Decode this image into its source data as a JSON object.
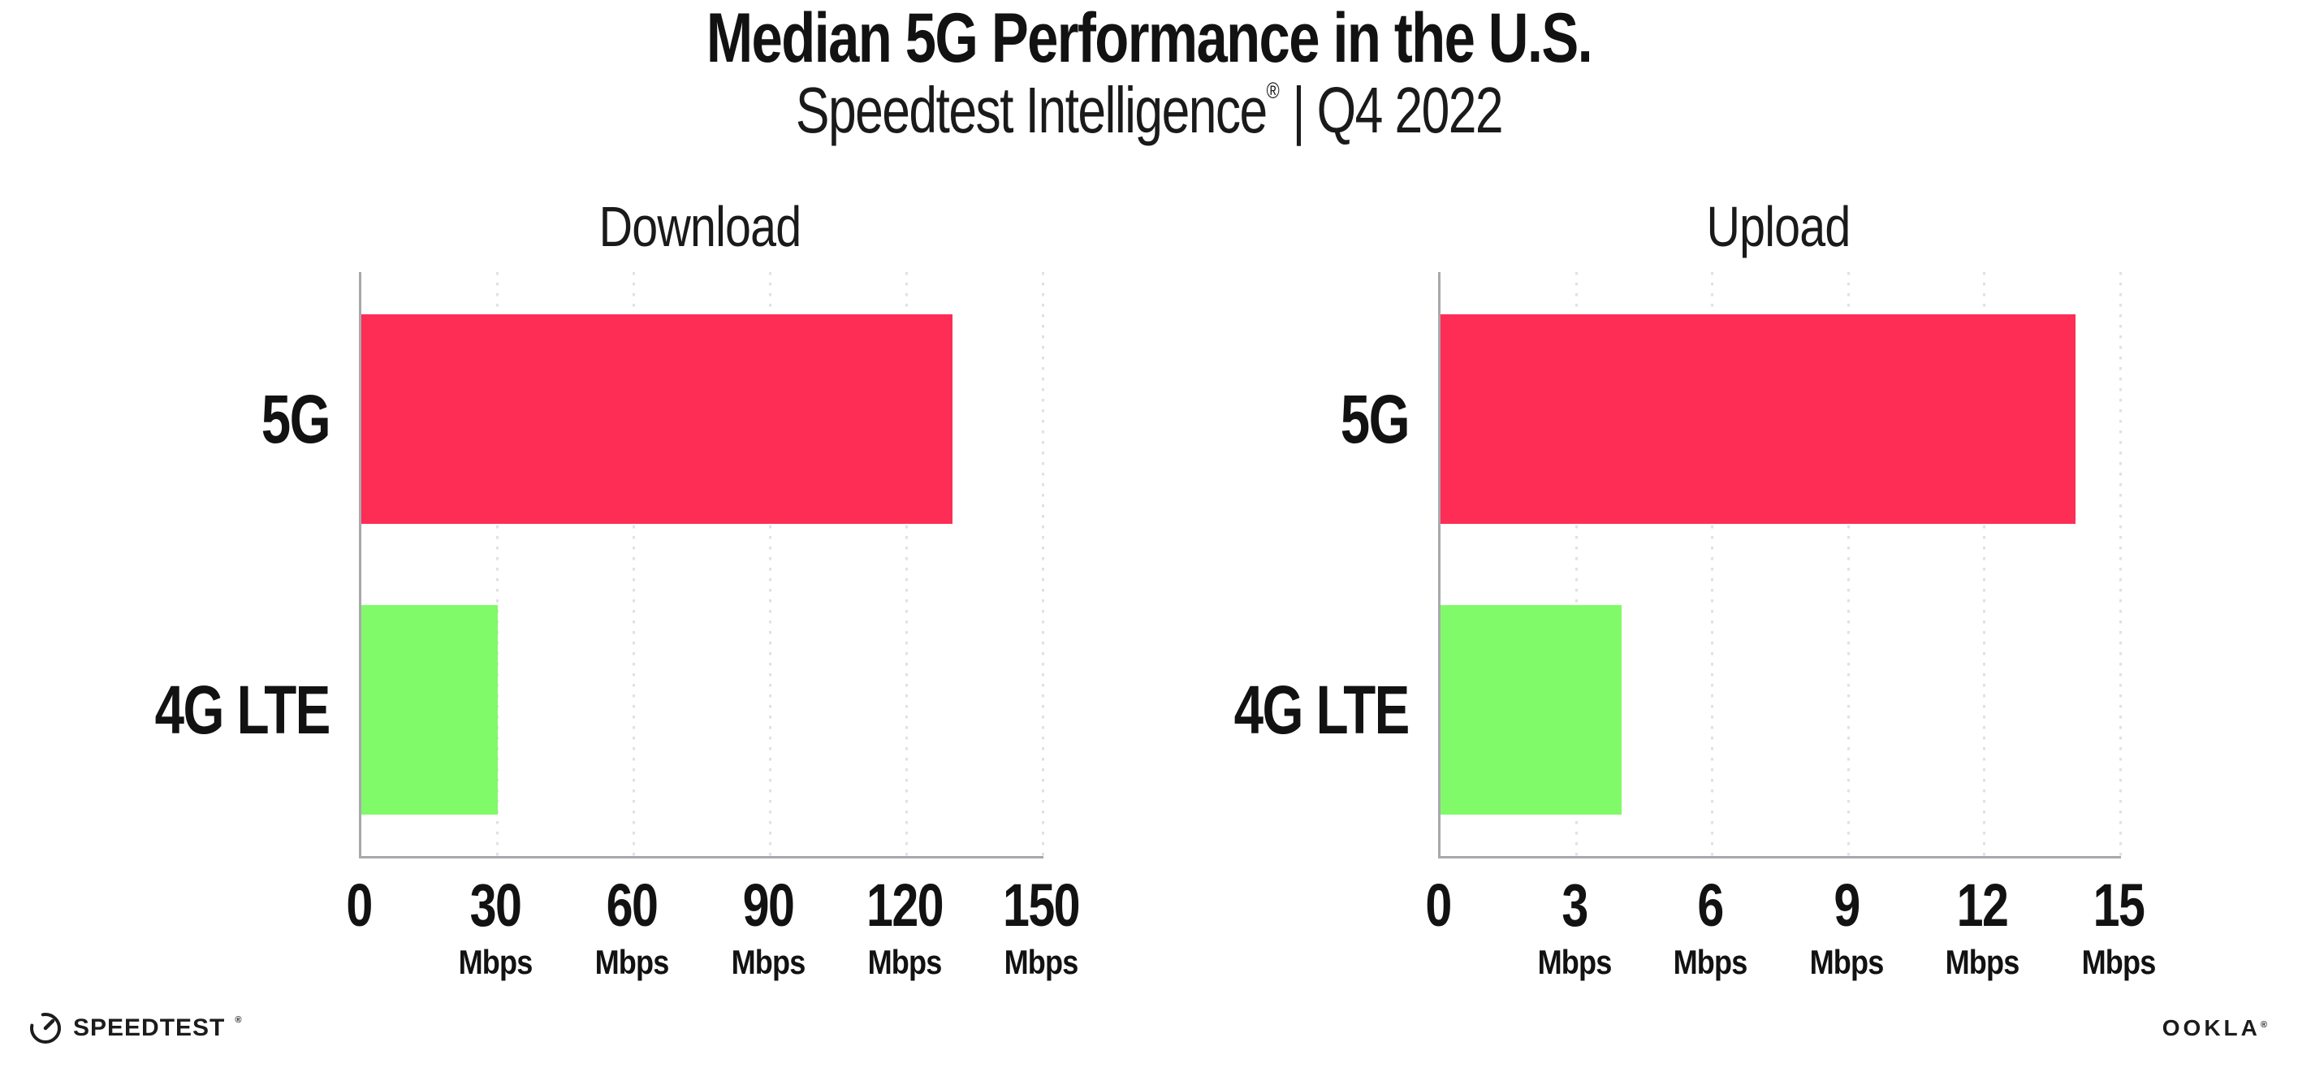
{
  "header": {
    "title": "Median 5G Performance in the U.S.",
    "subtitle_brand": "Speedtest Intelligence",
    "subtitle_reg": "®",
    "subtitle_sep": "|",
    "subtitle_period": "Q4 2022"
  },
  "chart_data": [
    {
      "type": "bar",
      "orientation": "horizontal",
      "title": "Download",
      "categories": [
        "5G",
        "4G LTE"
      ],
      "values": [
        130,
        30
      ],
      "unit": "Mbps",
      "xlim": [
        0,
        150
      ],
      "xticks": [
        0,
        30,
        60,
        90,
        120,
        150
      ],
      "bar_colors": [
        "#FD2D55",
        "#80FA69"
      ],
      "grid": "dotted-vertical",
      "legend": "none"
    },
    {
      "type": "bar",
      "orientation": "horizontal",
      "title": "Upload",
      "categories": [
        "5G",
        "4G LTE"
      ],
      "values": [
        14,
        4
      ],
      "unit": "Mbps",
      "xlim": [
        0,
        15
      ],
      "xticks": [
        0,
        3,
        6,
        9,
        12,
        15
      ],
      "bar_colors": [
        "#FD2D55",
        "#80FA69"
      ],
      "grid": "dotted-vertical",
      "legend": "none"
    }
  ],
  "colors": {
    "bar_5g": "#FD2D55",
    "bar_4g_lte": "#80FA69",
    "axis": "#a8a8ad",
    "gridline_dots": "#dee1e9",
    "text": "#121212"
  },
  "footer": {
    "speedtest_label": "SPEEDTEST",
    "speedtest_reg": "®",
    "ookla_label": "OOKLA",
    "ookla_reg": "®"
  }
}
